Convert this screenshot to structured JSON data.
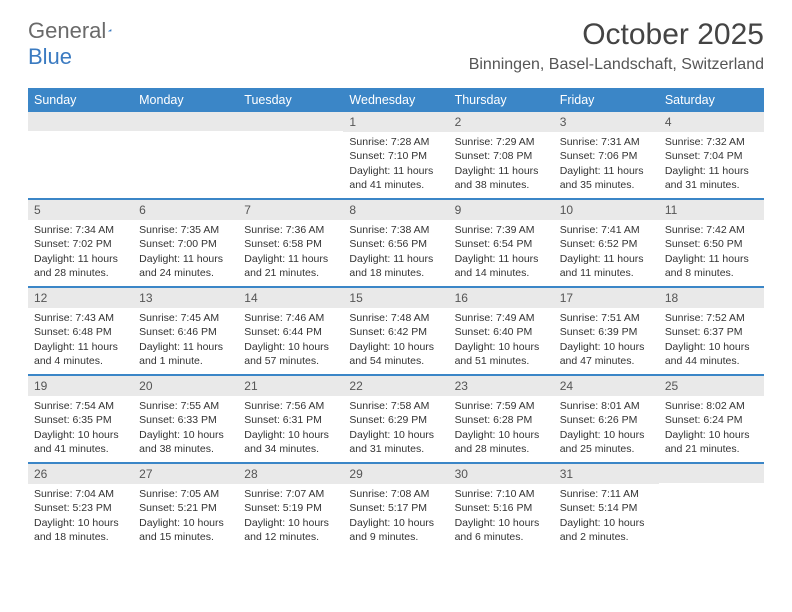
{
  "brand": {
    "word1": "General",
    "word2": "Blue"
  },
  "title": "October 2025",
  "location": "Binningen, Basel-Landschaft, Switzerland",
  "colors": {
    "header_bg": "#3b86c7",
    "header_text": "#ffffff",
    "daybar_bg": "#e9e9e9",
    "week_border": "#3b86c7",
    "logo_gray": "#6a6a6a",
    "logo_blue": "#3b7bc1"
  },
  "day_names": [
    "Sunday",
    "Monday",
    "Tuesday",
    "Wednesday",
    "Thursday",
    "Friday",
    "Saturday"
  ],
  "weeks": [
    [
      {
        "n": "",
        "sr": "",
        "ss": "",
        "dl": ""
      },
      {
        "n": "",
        "sr": "",
        "ss": "",
        "dl": ""
      },
      {
        "n": "",
        "sr": "",
        "ss": "",
        "dl": ""
      },
      {
        "n": "1",
        "sr": "Sunrise: 7:28 AM",
        "ss": "Sunset: 7:10 PM",
        "dl": "Daylight: 11 hours and 41 minutes."
      },
      {
        "n": "2",
        "sr": "Sunrise: 7:29 AM",
        "ss": "Sunset: 7:08 PM",
        "dl": "Daylight: 11 hours and 38 minutes."
      },
      {
        "n": "3",
        "sr": "Sunrise: 7:31 AM",
        "ss": "Sunset: 7:06 PM",
        "dl": "Daylight: 11 hours and 35 minutes."
      },
      {
        "n": "4",
        "sr": "Sunrise: 7:32 AM",
        "ss": "Sunset: 7:04 PM",
        "dl": "Daylight: 11 hours and 31 minutes."
      }
    ],
    [
      {
        "n": "5",
        "sr": "Sunrise: 7:34 AM",
        "ss": "Sunset: 7:02 PM",
        "dl": "Daylight: 11 hours and 28 minutes."
      },
      {
        "n": "6",
        "sr": "Sunrise: 7:35 AM",
        "ss": "Sunset: 7:00 PM",
        "dl": "Daylight: 11 hours and 24 minutes."
      },
      {
        "n": "7",
        "sr": "Sunrise: 7:36 AM",
        "ss": "Sunset: 6:58 PM",
        "dl": "Daylight: 11 hours and 21 minutes."
      },
      {
        "n": "8",
        "sr": "Sunrise: 7:38 AM",
        "ss": "Sunset: 6:56 PM",
        "dl": "Daylight: 11 hours and 18 minutes."
      },
      {
        "n": "9",
        "sr": "Sunrise: 7:39 AM",
        "ss": "Sunset: 6:54 PM",
        "dl": "Daylight: 11 hours and 14 minutes."
      },
      {
        "n": "10",
        "sr": "Sunrise: 7:41 AM",
        "ss": "Sunset: 6:52 PM",
        "dl": "Daylight: 11 hours and 11 minutes."
      },
      {
        "n": "11",
        "sr": "Sunrise: 7:42 AM",
        "ss": "Sunset: 6:50 PM",
        "dl": "Daylight: 11 hours and 8 minutes."
      }
    ],
    [
      {
        "n": "12",
        "sr": "Sunrise: 7:43 AM",
        "ss": "Sunset: 6:48 PM",
        "dl": "Daylight: 11 hours and 4 minutes."
      },
      {
        "n": "13",
        "sr": "Sunrise: 7:45 AM",
        "ss": "Sunset: 6:46 PM",
        "dl": "Daylight: 11 hours and 1 minute."
      },
      {
        "n": "14",
        "sr": "Sunrise: 7:46 AM",
        "ss": "Sunset: 6:44 PM",
        "dl": "Daylight: 10 hours and 57 minutes."
      },
      {
        "n": "15",
        "sr": "Sunrise: 7:48 AM",
        "ss": "Sunset: 6:42 PM",
        "dl": "Daylight: 10 hours and 54 minutes."
      },
      {
        "n": "16",
        "sr": "Sunrise: 7:49 AM",
        "ss": "Sunset: 6:40 PM",
        "dl": "Daylight: 10 hours and 51 minutes."
      },
      {
        "n": "17",
        "sr": "Sunrise: 7:51 AM",
        "ss": "Sunset: 6:39 PM",
        "dl": "Daylight: 10 hours and 47 minutes."
      },
      {
        "n": "18",
        "sr": "Sunrise: 7:52 AM",
        "ss": "Sunset: 6:37 PM",
        "dl": "Daylight: 10 hours and 44 minutes."
      }
    ],
    [
      {
        "n": "19",
        "sr": "Sunrise: 7:54 AM",
        "ss": "Sunset: 6:35 PM",
        "dl": "Daylight: 10 hours and 41 minutes."
      },
      {
        "n": "20",
        "sr": "Sunrise: 7:55 AM",
        "ss": "Sunset: 6:33 PM",
        "dl": "Daylight: 10 hours and 38 minutes."
      },
      {
        "n": "21",
        "sr": "Sunrise: 7:56 AM",
        "ss": "Sunset: 6:31 PM",
        "dl": "Daylight: 10 hours and 34 minutes."
      },
      {
        "n": "22",
        "sr": "Sunrise: 7:58 AM",
        "ss": "Sunset: 6:29 PM",
        "dl": "Daylight: 10 hours and 31 minutes."
      },
      {
        "n": "23",
        "sr": "Sunrise: 7:59 AM",
        "ss": "Sunset: 6:28 PM",
        "dl": "Daylight: 10 hours and 28 minutes."
      },
      {
        "n": "24",
        "sr": "Sunrise: 8:01 AM",
        "ss": "Sunset: 6:26 PM",
        "dl": "Daylight: 10 hours and 25 minutes."
      },
      {
        "n": "25",
        "sr": "Sunrise: 8:02 AM",
        "ss": "Sunset: 6:24 PM",
        "dl": "Daylight: 10 hours and 21 minutes."
      }
    ],
    [
      {
        "n": "26",
        "sr": "Sunrise: 7:04 AM",
        "ss": "Sunset: 5:23 PM",
        "dl": "Daylight: 10 hours and 18 minutes."
      },
      {
        "n": "27",
        "sr": "Sunrise: 7:05 AM",
        "ss": "Sunset: 5:21 PM",
        "dl": "Daylight: 10 hours and 15 minutes."
      },
      {
        "n": "28",
        "sr": "Sunrise: 7:07 AM",
        "ss": "Sunset: 5:19 PM",
        "dl": "Daylight: 10 hours and 12 minutes."
      },
      {
        "n": "29",
        "sr": "Sunrise: 7:08 AM",
        "ss": "Sunset: 5:17 PM",
        "dl": "Daylight: 10 hours and 9 minutes."
      },
      {
        "n": "30",
        "sr": "Sunrise: 7:10 AM",
        "ss": "Sunset: 5:16 PM",
        "dl": "Daylight: 10 hours and 6 minutes."
      },
      {
        "n": "31",
        "sr": "Sunrise: 7:11 AM",
        "ss": "Sunset: 5:14 PM",
        "dl": "Daylight: 10 hours and 2 minutes."
      },
      {
        "n": "",
        "sr": "",
        "ss": "",
        "dl": ""
      }
    ]
  ]
}
